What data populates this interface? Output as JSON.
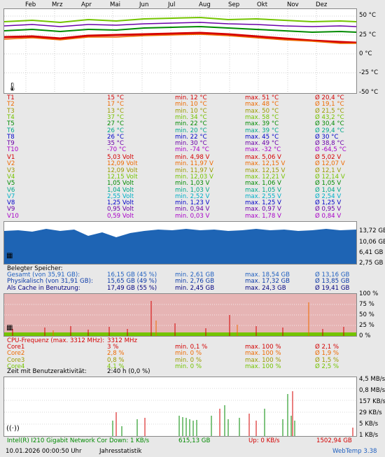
{
  "months": [
    "Feb",
    "Mrz",
    "Apr",
    "Mai",
    "Jun",
    "Jul",
    "Aug",
    "Sep",
    "Okt",
    "Nov",
    "Dez"
  ],
  "temp_axis": [
    "50 °C",
    "25 °C",
    "0 °C",
    "-25 °C",
    "-50 °C"
  ],
  "temps": [
    {
      "name": "T1",
      "cur": "15 °C",
      "min": "min. 12 °C",
      "max": "max. 51 °C",
      "avg": "Ø 20,4 °C",
      "color": "#d40000"
    },
    {
      "name": "T2",
      "cur": "17 °C",
      "min": "min. 10 °C",
      "max": "max. 48 °C",
      "avg": "Ø 19,1 °C",
      "color": "#ee6a00"
    },
    {
      "name": "T3",
      "cur": "13 °C",
      "min": "min. 10 °C",
      "max": "max. 50 °C",
      "avg": "Ø 21,5 °C",
      "color": "#9a9a00"
    },
    {
      "name": "T4",
      "cur": "37 °C",
      "min": "min. 34 °C",
      "max": "max. 58 °C",
      "avg": "Ø 43,2 °C",
      "color": "#74c400"
    },
    {
      "name": "T5",
      "cur": "27 °C",
      "min": "min. 22 °C",
      "max": "max. 39 °C",
      "avg": "Ø 30,4 °C",
      "color": "#008a00"
    },
    {
      "name": "T6",
      "cur": "26 °C",
      "min": "min. 20 °C",
      "max": "max. 39 °C",
      "avg": "Ø 29,4 °C",
      "color": "#00a88a"
    },
    {
      "name": "T8",
      "cur": "26 °C",
      "min": "min. 22 °C",
      "max": "max. 45 °C",
      "avg": "Ø 30 °C",
      "color": "#0000c8"
    },
    {
      "name": "T9",
      "cur": "35 °C",
      "min": "min. 30 °C",
      "max": "max. 49 °C",
      "avg": "Ø 38,8 °C",
      "color": "#6a00a8"
    },
    {
      "name": "T10",
      "cur": "-70 °C",
      "min": "min. -74 °C",
      "max": "max. -32 °C",
      "avg": "Ø -64,5 °C",
      "color": "#a800c8"
    }
  ],
  "volts": [
    {
      "name": "V1",
      "cur": "5,03 Volt",
      "min": "min. 4,98 V",
      "max": "max. 5,06 V",
      "avg": "Ø 5,02 V",
      "color": "#d40000"
    },
    {
      "name": "V2",
      "cur": "12,09 Volt",
      "min": "min. 11,97 V",
      "max": "max. 12,15 V",
      "avg": "Ø 12,07 V",
      "color": "#ee6a00"
    },
    {
      "name": "V3",
      "cur": "12,09 Volt",
      "min": "min. 11,97 V",
      "max": "max. 12,15 V",
      "avg": "Ø 12,1 V",
      "color": "#9a9a00"
    },
    {
      "name": "V4",
      "cur": "12,15 Volt",
      "min": "min. 12,03 V",
      "max": "max. 12,21 V",
      "avg": "Ø 12,14 V",
      "color": "#74c400"
    },
    {
      "name": "V5",
      "cur": "1,05 Volt",
      "min": "min. 1,03 V",
      "max": "max. 1,06 V",
      "avg": "Ø 1,05 V",
      "color": "#008a00"
    },
    {
      "name": "V6",
      "cur": "1,04 Volt",
      "min": "min. 1,03 V",
      "max": "max. 1,05 V",
      "avg": "Ø 1,04 V",
      "color": "#00a88a"
    },
    {
      "name": "V7",
      "cur": "2,55 Volt",
      "min": "min. 2,52 V",
      "max": "max. 2,55 V",
      "avg": "Ø 2,54 V",
      "color": "#00b0c8"
    },
    {
      "name": "V8",
      "cur": "1,25 Volt",
      "min": "min. 1,23 V",
      "max": "max. 1,25 V",
      "avg": "Ø 1,25 V",
      "color": "#0000c8"
    },
    {
      "name": "V9",
      "cur": "0,95 Volt",
      "min": "min. 0,94 V",
      "max": "max. 0,97 V",
      "avg": "Ø 0,95 V",
      "color": "#6a00a8"
    },
    {
      "name": "V10",
      "cur": "0,59 Volt",
      "min": "min. 0,03 V",
      "max": "max. 1,78 V",
      "avg": "Ø 0,84 V",
      "color": "#a800c8"
    }
  ],
  "mem_axis": [
    "13,72 GB",
    "10,06 GB",
    "6,41 GB",
    "2,75 GB"
  ],
  "mem_title": "Belegter Speicher:",
  "mem": [
    {
      "name": "Gesamt (von 35,91 GB):",
      "cur": "16,15 GB (45 %)",
      "min": "min. 2,61 GB",
      "max": "max. 18,54 GB",
      "avg": "Ø 13,16 GB",
      "color": "#2060c0"
    },
    {
      "name": "Physikalisch (von 31,91 GB):",
      "cur": "15,65 GB (49 %)",
      "min": "min. 2,76 GB",
      "max": "max. 17,32 GB",
      "avg": "Ø 13,85 GB",
      "color": "#0a3aa8"
    },
    {
      "name": "Als Cache in Benutzung:",
      "cur": "17,49 GB (55 %)",
      "min": "min. 2,45 GB",
      "max": "max. 24,3 GB",
      "avg": "Ø 19,41 GB",
      "color": "#000080"
    }
  ],
  "cpu_axis": [
    "100 %",
    "75 %",
    "50 %",
    "25 %",
    "0 %"
  ],
  "cpu_title": "CPU-Frequenz (max. 3312 MHz):",
  "cpu_freq": "3312 MHz",
  "cores": [
    {
      "name": "Core1",
      "cur": "3 %",
      "min": "min. 0,1 %",
      "max": "max. 100 %",
      "avg": "Ø 2,1 %",
      "color": "#d40000"
    },
    {
      "name": "Core2",
      "cur": "2,8 %",
      "min": "min. 0 %",
      "max": "max. 100 %",
      "avg": "Ø 1,9 %",
      "color": "#ee6a00"
    },
    {
      "name": "Core3",
      "cur": "0,8 %",
      "min": "min. 0 %",
      "max": "max. 100 %",
      "avg": "Ø 1,5 %",
      "color": "#9a9a00"
    },
    {
      "name": "Core4",
      "cur": "4,1 %",
      "min": "min. 0 %",
      "max": "max. 100 %",
      "avg": "Ø 2,5 %",
      "color": "#74c400"
    }
  ],
  "activity_label": "Zeit mit Benutzeraktivität:",
  "activity_value": "2:40 h (0,0 %)",
  "net_axis": [
    "4,5 MB/s",
    "0,8 MB/s",
    "157 KB/s",
    "29 KB/s",
    "5 KB/s",
    "1 KB/s"
  ],
  "net": {
    "adapter": "Intel(R) I210 Gigabit Network Cor",
    "down": "Down: 1 KB/s",
    "down_total": "615,13 GB",
    "up": "Up: 0 KB/s",
    "up_total": "1502,94 GB"
  },
  "footer": {
    "timestamp": "10.01.2026 00:00:50 Uhr",
    "stat": "Jahresstatistik",
    "app": "WebTemp 3.38"
  },
  "colors": {
    "mem_fill": "#1e64b4",
    "cpu_bg": "#e6b4b4"
  }
}
